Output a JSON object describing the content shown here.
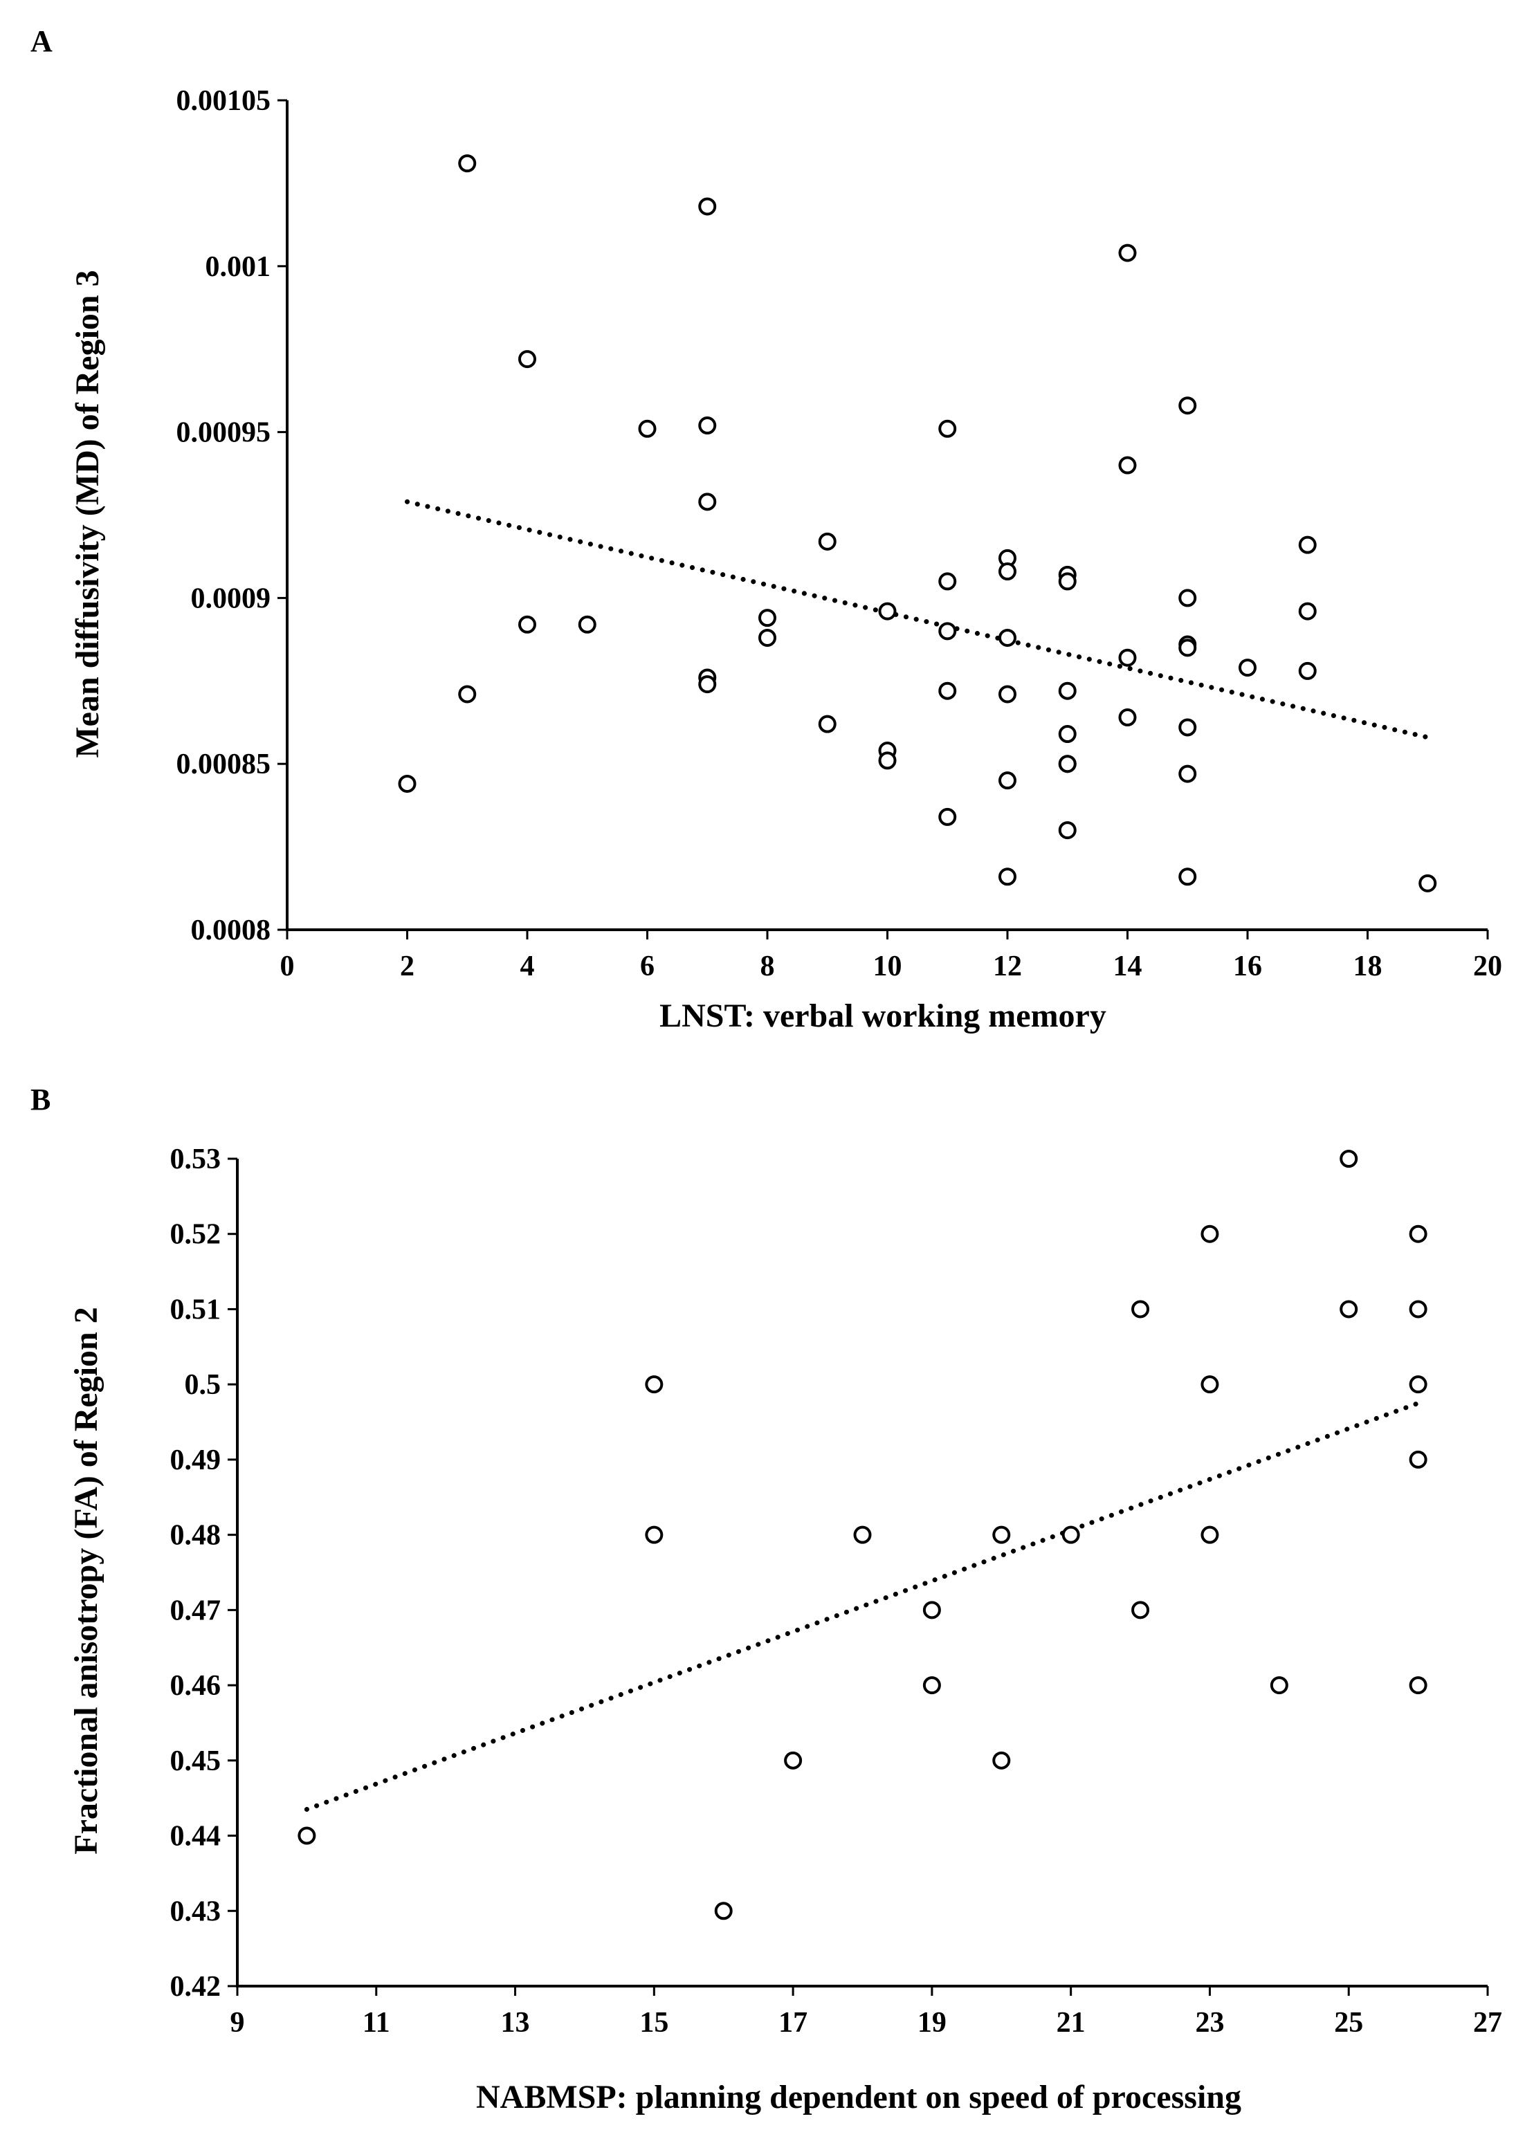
{
  "colors": {
    "ink": "#000000",
    "background": "#ffffff"
  },
  "chart_data": [
    {
      "panel_label": "A",
      "type": "scatter",
      "title": "",
      "xlabel": "LNST: verbal working memory",
      "ylabel": "Mean diffusivity (MD) of Region 3",
      "xlim": [
        0,
        20
      ],
      "ylim": [
        0.0008,
        0.00105
      ],
      "xticks": [
        0,
        2,
        4,
        6,
        8,
        10,
        12,
        14,
        16,
        18,
        20
      ],
      "xtick_labels": [
        "0",
        "2",
        "4",
        "6",
        "8",
        "10",
        "12",
        "14",
        "16",
        "18",
        "20"
      ],
      "yticks": [
        0.0008,
        0.00085,
        0.0009,
        0.00095,
        0.001,
        0.00105
      ],
      "ytick_labels": [
        "0.0008",
        "0.00085",
        "0.0009",
        "0.00095",
        "0.001",
        "0.00105"
      ],
      "grid": false,
      "marker": "open-circle",
      "trendline": {
        "style": "dotted",
        "x": [
          2,
          19
        ],
        "y": [
          0.000929,
          0.000858
        ]
      },
      "points": [
        [
          2,
          0.000844
        ],
        [
          3,
          0.001031
        ],
        [
          3,
          0.000871
        ],
        [
          4,
          0.000972
        ],
        [
          4,
          0.000892
        ],
        [
          5,
          0.000892
        ],
        [
          6,
          0.000951
        ],
        [
          7,
          0.001018
        ],
        [
          7,
          0.000952
        ],
        [
          7,
          0.000929
        ],
        [
          7,
          0.000876
        ],
        [
          7,
          0.000874
        ],
        [
          8,
          0.000894
        ],
        [
          8,
          0.000888
        ],
        [
          9,
          0.000917
        ],
        [
          9,
          0.000862
        ],
        [
          10,
          0.000896
        ],
        [
          10,
          0.000854
        ],
        [
          10,
          0.000851
        ],
        [
          11,
          0.000951
        ],
        [
          11,
          0.000905
        ],
        [
          11,
          0.00089
        ],
        [
          11,
          0.000872
        ],
        [
          11,
          0.000834
        ],
        [
          12,
          0.000912
        ],
        [
          12,
          0.000908
        ],
        [
          12,
          0.000888
        ],
        [
          12,
          0.000871
        ],
        [
          12,
          0.000845
        ],
        [
          12,
          0.000816
        ],
        [
          13,
          0.000907
        ],
        [
          13,
          0.000905
        ],
        [
          13,
          0.000872
        ],
        [
          13,
          0.000859
        ],
        [
          13,
          0.00085
        ],
        [
          13,
          0.00085
        ],
        [
          13,
          0.00083
        ],
        [
          14,
          0.001004
        ],
        [
          14,
          0.00094
        ],
        [
          14,
          0.000882
        ],
        [
          14,
          0.000864
        ],
        [
          15,
          0.000958
        ],
        [
          15,
          0.0009
        ],
        [
          15,
          0.000886
        ],
        [
          15,
          0.000885
        ],
        [
          15,
          0.000861
        ],
        [
          15,
          0.000847
        ],
        [
          15,
          0.000816
        ],
        [
          16,
          0.000879
        ],
        [
          17,
          0.000916
        ],
        [
          17,
          0.000896
        ],
        [
          17,
          0.000878
        ],
        [
          19,
          0.000814
        ]
      ]
    },
    {
      "panel_label": "B",
      "type": "scatter",
      "title": "",
      "xlabel": "NABMSP: planning dependent on speed of processing",
      "ylabel": "Fractional anisotropy (FA) of Region 2",
      "xlim": [
        9,
        27
      ],
      "ylim": [
        0.42,
        0.53
      ],
      "xticks": [
        9,
        11,
        13,
        15,
        17,
        19,
        21,
        23,
        25,
        27
      ],
      "xtick_labels": [
        "9",
        "11",
        "13",
        "15",
        "17",
        "19",
        "21",
        "23",
        "25",
        "27"
      ],
      "yticks": [
        0.42,
        0.43,
        0.44,
        0.45,
        0.46,
        0.47,
        0.48,
        0.49,
        0.5,
        0.51,
        0.52,
        0.53
      ],
      "ytick_labels": [
        "0.42",
        "0.43",
        "0.44",
        "0.45",
        "0.46",
        "0.47",
        "0.48",
        "0.49",
        "0.5",
        "0.51",
        "0.52",
        "0.53"
      ],
      "grid": false,
      "marker": "open-circle",
      "trendline": {
        "style": "dotted",
        "x": [
          10,
          26
        ],
        "y": [
          0.4435,
          0.4975
        ]
      },
      "points": [
        [
          10,
          0.44
        ],
        [
          15,
          0.5
        ],
        [
          15,
          0.48
        ],
        [
          16,
          0.43
        ],
        [
          17,
          0.45
        ],
        [
          18,
          0.48
        ],
        [
          19,
          0.47
        ],
        [
          19,
          0.46
        ],
        [
          20,
          0.48
        ],
        [
          20,
          0.45
        ],
        [
          21,
          0.48
        ],
        [
          22,
          0.51
        ],
        [
          22,
          0.47
        ],
        [
          23,
          0.52
        ],
        [
          23,
          0.5
        ],
        [
          23,
          0.48
        ],
        [
          24,
          0.46
        ],
        [
          25,
          0.53
        ],
        [
          25,
          0.51
        ],
        [
          26,
          0.52
        ],
        [
          26,
          0.51
        ],
        [
          26,
          0.5
        ],
        [
          26,
          0.49
        ],
        [
          26,
          0.46
        ]
      ]
    }
  ]
}
